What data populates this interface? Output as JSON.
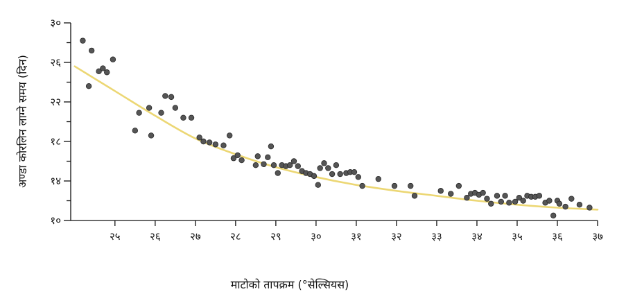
{
  "chart_data": {
    "type": "scatter",
    "title": "",
    "xlabel": "माटोको तापक्रम (°सेल्सियस)",
    "ylabel": "अण्डा कोरलिन लाग्ने समय (दिन)",
    "xlim": [
      23.9,
      37.0
    ],
    "ylim": [
      10,
      30
    ],
    "x_ticks": [
      25,
      26,
      27,
      28,
      29,
      30,
      31,
      32,
      33,
      34,
      35,
      36,
      37
    ],
    "x_tick_labels": [
      "२५",
      "२६",
      "२७",
      "२८",
      "२९",
      "३०",
      "३१",
      "३२",
      "३३",
      "३४",
      "३५",
      "३६",
      "३७"
    ],
    "y_ticks": [
      10,
      14,
      18,
      22,
      26,
      30
    ],
    "y_tick_labels": [
      "१०",
      "१४",
      "१८",
      "२२",
      "२६",
      "३०"
    ],
    "grid": false,
    "colors": {
      "points": "#555555",
      "point_edge": "#2a2a2a",
      "trend": "#ecd774",
      "axis": "#111111"
    },
    "trend": {
      "x": [
        24.0,
        25.0,
        26.0,
        27.0,
        28.0,
        29.0,
        30.0,
        31.0,
        32.0,
        33.0,
        34.0,
        35.0,
        36.0,
        37.0
      ],
      "y": [
        25.6,
        23.1,
        20.6,
        18.3,
        16.7,
        15.4,
        14.4,
        13.6,
        13.0,
        12.5,
        12.0,
        11.6,
        11.3,
        11.1
      ]
    },
    "points": {
      "x": [
        24.2,
        24.35,
        24.42,
        24.6,
        24.7,
        24.8,
        24.95,
        25.5,
        25.6,
        25.85,
        25.9,
        26.15,
        26.25,
        26.4,
        26.5,
        26.7,
        26.9,
        27.1,
        27.2,
        27.35,
        27.5,
        27.7,
        27.85,
        27.95,
        28.05,
        28.15,
        28.5,
        28.55,
        28.7,
        28.8,
        28.88,
        28.95,
        29.05,
        29.15,
        29.25,
        29.35,
        29.45,
        29.55,
        29.65,
        29.75,
        29.85,
        29.95,
        30.05,
        30.1,
        30.2,
        30.3,
        30.4,
        30.5,
        30.6,
        30.75,
        30.85,
        30.95,
        31.05,
        31.15,
        31.55,
        31.95,
        32.35,
        32.45,
        33.1,
        33.35,
        33.55,
        33.75,
        33.85,
        33.95,
        34.05,
        34.15,
        34.25,
        34.35,
        34.5,
        34.6,
        34.7,
        34.8,
        34.95,
        35.05,
        35.15,
        35.25,
        35.35,
        35.45,
        35.55,
        35.7,
        35.8,
        35.9,
        36.0,
        36.05,
        36.2,
        36.35,
        36.55,
        36.8
      ],
      "y": [
        28.2,
        23.6,
        27.2,
        25.1,
        25.4,
        25.0,
        26.3,
        19.1,
        20.9,
        21.4,
        18.6,
        20.9,
        22.6,
        22.5,
        21.4,
        20.4,
        20.4,
        18.4,
        18.0,
        17.9,
        17.7,
        17.6,
        18.6,
        16.3,
        16.6,
        16.1,
        15.6,
        16.5,
        15.7,
        16.4,
        17.5,
        15.6,
        14.8,
        15.6,
        15.5,
        15.6,
        16.0,
        15.5,
        15.0,
        14.8,
        14.7,
        14.5,
        13.6,
        15.3,
        15.8,
        15.3,
        14.7,
        15.6,
        14.7,
        14.8,
        14.9,
        14.9,
        14.4,
        13.5,
        14.2,
        13.5,
        13.5,
        12.5,
        13.0,
        12.7,
        13.5,
        12.3,
        12.7,
        12.8,
        12.6,
        12.8,
        12.2,
        11.7,
        12.5,
        11.9,
        12.5,
        11.8,
        11.9,
        12.3,
        12.0,
        12.5,
        12.4,
        12.4,
        12.5,
        11.8,
        12.0,
        10.5,
        12.0,
        11.7,
        11.4,
        12.2,
        11.6,
        11.3
      ]
    }
  }
}
